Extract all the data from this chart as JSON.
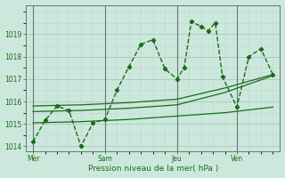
{
  "bg_color": "#cce8dc",
  "line_color": "#1a6b1a",
  "grid_color_major": "#a8c8bc",
  "grid_color_minor": "#bcd8cc",
  "ylim": [
    1013.8,
    1020.3
  ],
  "yticks": [
    1014,
    1015,
    1016,
    1017,
    1018,
    1019
  ],
  "xlabel": "Pression niveau de la mer( hPa )",
  "xlabel_color": "#1a6b1a",
  "day_labels": [
    "Mer",
    "Sam",
    "Jeu",
    "Ven"
  ],
  "day_positions": [
    0.0,
    3.0,
    6.0,
    8.5
  ],
  "xlim": [
    -0.3,
    10.3
  ],
  "series1_x": [
    0.0,
    0.5,
    1.0,
    1.5,
    2.0,
    2.5,
    3.0,
    3.5,
    4.0,
    4.5,
    5.0,
    5.5,
    6.0,
    6.3,
    6.6,
    7.0,
    7.3,
    7.6,
    7.9,
    8.5,
    9.0,
    9.5,
    10.0
  ],
  "series1_y": [
    1014.2,
    1015.15,
    1015.8,
    1015.6,
    1014.0,
    1015.05,
    1015.2,
    1016.5,
    1017.55,
    1018.55,
    1018.75,
    1017.45,
    1017.0,
    1017.5,
    1019.55,
    1019.35,
    1019.15,
    1019.5,
    1017.1,
    1015.75,
    1018.0,
    1018.35,
    1017.2
  ],
  "series2_x": [
    0.0,
    2.0,
    4.0,
    6.0,
    8.0,
    10.0
  ],
  "series2_y": [
    1015.8,
    1015.85,
    1015.95,
    1016.1,
    1016.6,
    1017.2
  ],
  "series3_x": [
    0.0,
    2.0,
    4.0,
    6.0,
    8.0,
    10.0
  ],
  "series3_y": [
    1015.55,
    1015.6,
    1015.7,
    1015.85,
    1016.4,
    1017.15
  ],
  "series4_x": [
    0.0,
    2.0,
    4.0,
    6.0,
    8.0,
    10.0
  ],
  "series4_y": [
    1015.05,
    1015.1,
    1015.2,
    1015.35,
    1015.5,
    1015.75
  ]
}
